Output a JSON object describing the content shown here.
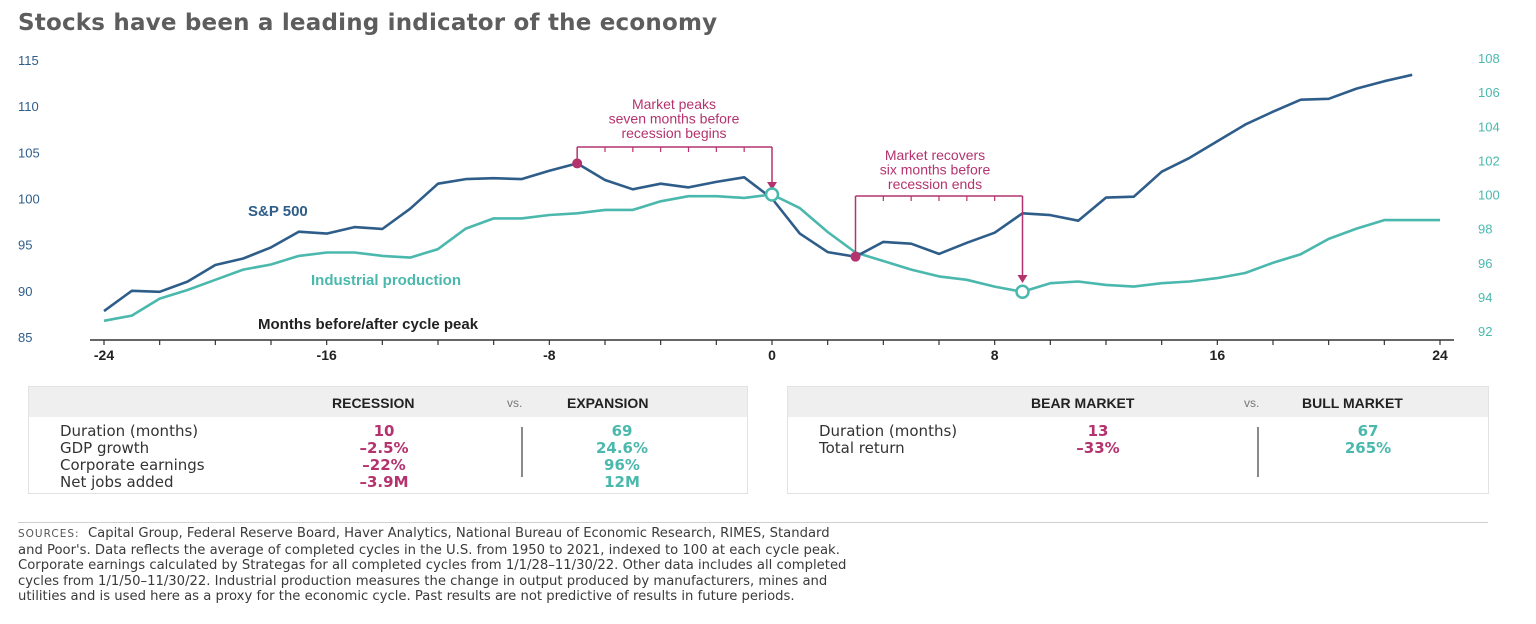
{
  "title": "Stocks have been a leading indicator of the economy",
  "colors": {
    "sp500": "#2e5d8a",
    "industrial": "#4bb8ad",
    "annotation": "#b4336e",
    "axis": "#333333"
  },
  "chart_data": {
    "type": "line",
    "xlabel": "Months before/after cycle peak",
    "x_ticks": [
      -24,
      -16,
      -8,
      0,
      8,
      16,
      24
    ],
    "x_range": [
      -24,
      24
    ],
    "y_left": {
      "range": [
        85,
        115
      ],
      "ticks": [
        85,
        90,
        95,
        100,
        105,
        110,
        115
      ]
    },
    "y_right": {
      "range": [
        92,
        108
      ],
      "ticks": [
        92,
        94,
        96,
        98,
        100,
        102,
        104,
        106,
        108
      ]
    },
    "series": [
      {
        "name": "S&P 500",
        "axis": "left",
        "x": [
          -24,
          -23,
          -22,
          -21,
          -20,
          -19,
          -18,
          -17,
          -16,
          -15,
          -14,
          -13,
          -12,
          -11,
          -10,
          -9,
          -8,
          -7,
          -6,
          -5,
          -4,
          -3,
          -2,
          -1,
          0,
          1,
          2,
          3,
          4,
          5,
          6,
          7,
          8,
          9,
          10,
          11,
          12,
          13,
          14,
          15,
          16,
          17,
          18,
          19,
          20,
          21,
          22,
          23
        ],
        "values": [
          87.8,
          90.0,
          89.9,
          91.0,
          92.8,
          93.5,
          94.7,
          96.4,
          96.2,
          96.9,
          96.7,
          98.9,
          101.6,
          102.1,
          102.2,
          102.1,
          103.0,
          103.8,
          102.0,
          101.0,
          101.6,
          101.2,
          101.8,
          102.3,
          100.0,
          96.2,
          94.2,
          93.7,
          95.3,
          95.1,
          94.0,
          95.2,
          96.3,
          98.4,
          98.2,
          97.6,
          100.1,
          100.2,
          102.9,
          104.4,
          106.2,
          108.0,
          109.4,
          110.7,
          110.8,
          111.9,
          112.7,
          113.4
        ]
      },
      {
        "name": "Industrial production",
        "axis": "right",
        "x": [
          -24,
          -23,
          -22,
          -21,
          -20,
          -19,
          -18,
          -17,
          -16,
          -15,
          -14,
          -13,
          -12,
          -11,
          -10,
          -9,
          -8,
          -7,
          -6,
          -5,
          -4,
          -3,
          -2,
          -1,
          0,
          1,
          2,
          3,
          4,
          5,
          6,
          7,
          8,
          9,
          10,
          11,
          12,
          13,
          14,
          15,
          16,
          17,
          18,
          19,
          20,
          21,
          22,
          23,
          24
        ],
        "values": [
          92.6,
          92.9,
          93.9,
          94.4,
          95.0,
          95.6,
          95.9,
          96.4,
          96.6,
          96.6,
          96.4,
          96.3,
          96.8,
          98.0,
          98.6,
          98.6,
          98.8,
          98.9,
          99.1,
          99.1,
          99.6,
          99.9,
          99.9,
          99.8,
          100.0,
          99.2,
          97.8,
          96.6,
          96.1,
          95.6,
          95.2,
          95.0,
          94.6,
          94.3,
          94.8,
          94.9,
          94.7,
          94.6,
          94.8,
          94.9,
          95.1,
          95.4,
          96.0,
          96.5,
          97.4,
          98.0,
          98.5,
          98.5,
          98.5
        ]
      }
    ],
    "series_labels": {
      "sp500": "S&P 500",
      "industrial": "Industrial production"
    },
    "annotations": [
      {
        "id": "peak",
        "lines": [
          "Market peaks",
          "seven months before",
          "recession begins"
        ],
        "from_month": -7,
        "to_month": 0
      },
      {
        "id": "recover",
        "lines": [
          "Market recovers",
          "six months before",
          "recession ends"
        ],
        "from_month": 3,
        "to_month": 9
      }
    ]
  },
  "recession_table": {
    "col1": "RECESSION",
    "vs": "vs.",
    "col2": "EXPANSION",
    "rows": [
      {
        "label": "Duration (months)",
        "a": "10",
        "b": "69"
      },
      {
        "label": "GDP growth",
        "a": "–2.5%",
        "b": "24.6%"
      },
      {
        "label": "Corporate earnings",
        "a": "–22%",
        "b": "96%"
      },
      {
        "label": "Net jobs added",
        "a": "–3.9M",
        "b": "12M"
      }
    ]
  },
  "market_table": {
    "col1": "BEAR MARKET",
    "vs": "vs.",
    "col2": "BULL MARKET",
    "rows": [
      {
        "label": "Duration (months)",
        "a": "13",
        "b": "67"
      },
      {
        "label": "Total return",
        "a": "–33%",
        "b": "265%"
      }
    ]
  },
  "sources": {
    "label": "SOURCES:",
    "lines": [
      "Capital Group, Federal Reserve Board, Haver Analytics, National Bureau of Economic Research, RIMES, Standard",
      "and Poor's. Data reflects the average of completed cycles in the U.S. from 1950 to 2021, indexed to 100 at each cycle peak.",
      "Corporate earnings calculated by Strategas for all completed cycles from 1/1/28–11/30/22. Other data includes all completed",
      "cycles from 1/1/50–11/30/22. Industrial production measures the change in output produced by manufacturers, mines and",
      "utilities and is used here as a proxy for the economic cycle. Past results are not predictive of results in future periods."
    ]
  }
}
